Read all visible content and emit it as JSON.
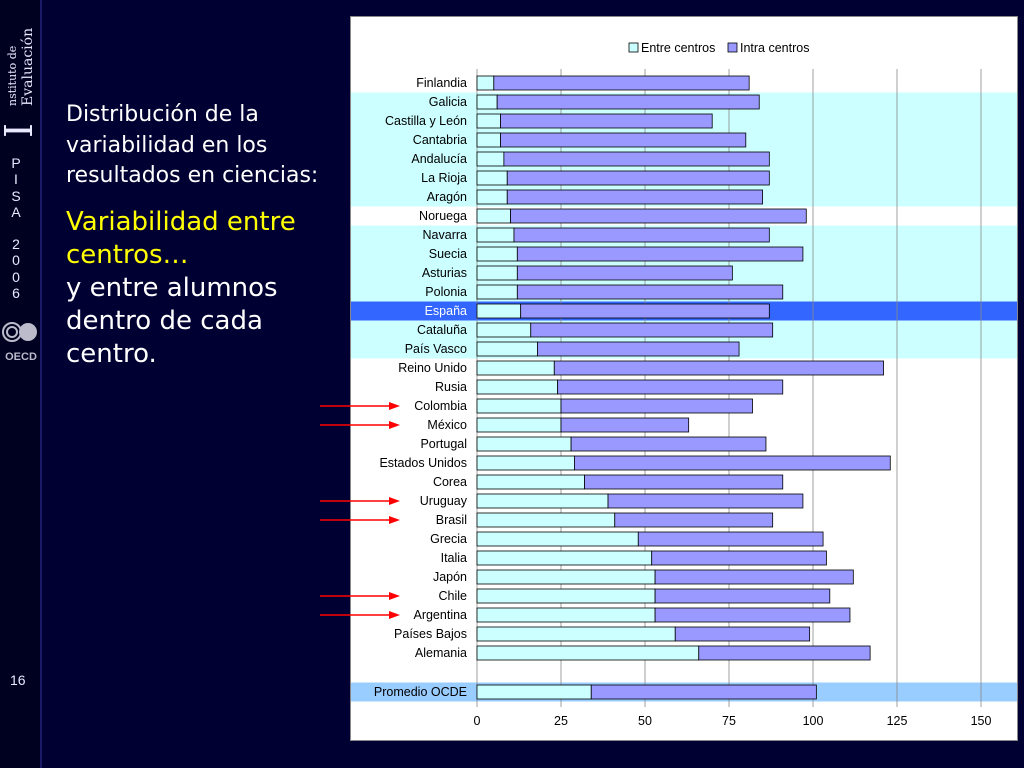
{
  "sidebar": {
    "logo_text": "Instituto de Evaluación",
    "pisa_letters": [
      "P",
      "I",
      "S",
      "A",
      "2",
      "0",
      "0",
      "6"
    ],
    "oecd": "OECD",
    "slide_number": "16"
  },
  "text": {
    "description": "Distribución de la variabilidad en los resultados en ciencias:",
    "accent": "Variabilidad entre centros…",
    "rest": "y entre alumnos dentro de cada centro."
  },
  "colors": {
    "background": "#000033",
    "accent": "#ffff00",
    "between_fill": "#ccffff",
    "within_fill": "#9999ff",
    "band": "#ccffff",
    "spain_band": "#3366ff",
    "oecd_band": "#99ccff",
    "arrow": "#ff0000"
  },
  "chart_data": {
    "type": "bar",
    "orientation": "horizontal",
    "stacked": true,
    "legend": [
      "Entre centros",
      "Intra centros"
    ],
    "legend_position": "top",
    "categories": [
      "Finlandia",
      "Galicia",
      "Castilla y León",
      "Cantabria",
      "Andalucía",
      "La Rioja",
      "Aragón",
      "Noruega",
      "Navarra",
      "Suecia",
      "Asturias",
      "Polonia",
      "España",
      "Cataluña",
      "País Vasco",
      "Reino Unido",
      "Rusia",
      "Colombia",
      "México",
      "Portugal",
      "Estados Unidos",
      "Corea",
      "Uruguay",
      "Brasil",
      "Grecia",
      "Italia",
      "Japón",
      "Chile",
      "Argentina",
      "Países Bajos",
      "Alemania",
      "Promedio OCDE"
    ],
    "series": [
      {
        "name": "Entre centros",
        "values": [
          5,
          6,
          7,
          7,
          8,
          9,
          9,
          10,
          11,
          12,
          12,
          12,
          13,
          16,
          18,
          23,
          24,
          25,
          25,
          28,
          29,
          32,
          39,
          41,
          48,
          52,
          53,
          53,
          53,
          59,
          66,
          34
        ]
      },
      {
        "name": "Intra centros",
        "values": [
          76,
          78,
          63,
          73,
          79,
          78,
          76,
          88,
          76,
          85,
          64,
          79,
          74,
          72,
          60,
          98,
          67,
          57,
          38,
          58,
          94,
          59,
          58,
          47,
          55,
          52,
          59,
          52,
          58,
          40,
          51,
          67
        ]
      }
    ],
    "highlighted": [
      "Colombia",
      "México",
      "Uruguay",
      "Brasil",
      "Chile",
      "Argentina"
    ],
    "xlim": [
      0,
      150
    ],
    "xticks": [
      "0",
      "25",
      "50",
      "75",
      "100",
      "125",
      "150"
    ],
    "grid": true
  }
}
